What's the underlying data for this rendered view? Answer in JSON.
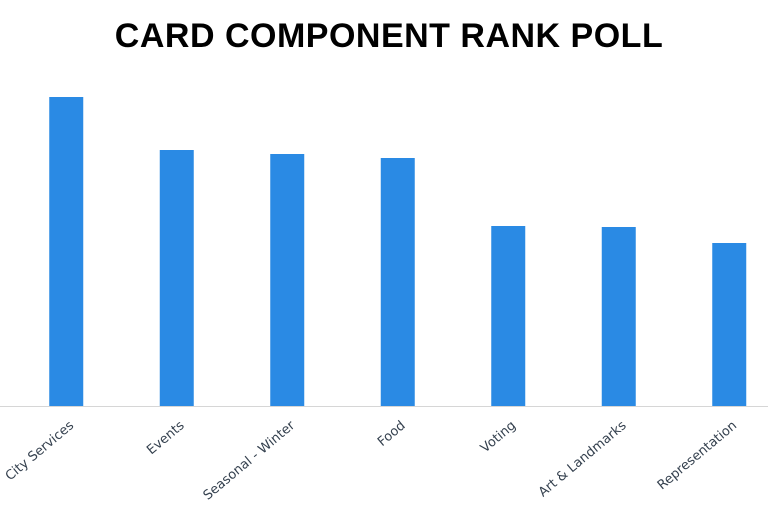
{
  "chart_data": {
    "type": "bar",
    "title": "CARD COMPONENT RANK POLL",
    "categories": [
      "City Services",
      "Events",
      "Seasonal - Winter",
      "Food",
      "Voting",
      "Art & Landmarks",
      "Representation"
    ],
    "values": [
      30.9,
      25.6,
      25.2,
      24.8,
      18.0,
      17.9,
      16.3
    ],
    "color": "#2a8ae4"
  }
}
